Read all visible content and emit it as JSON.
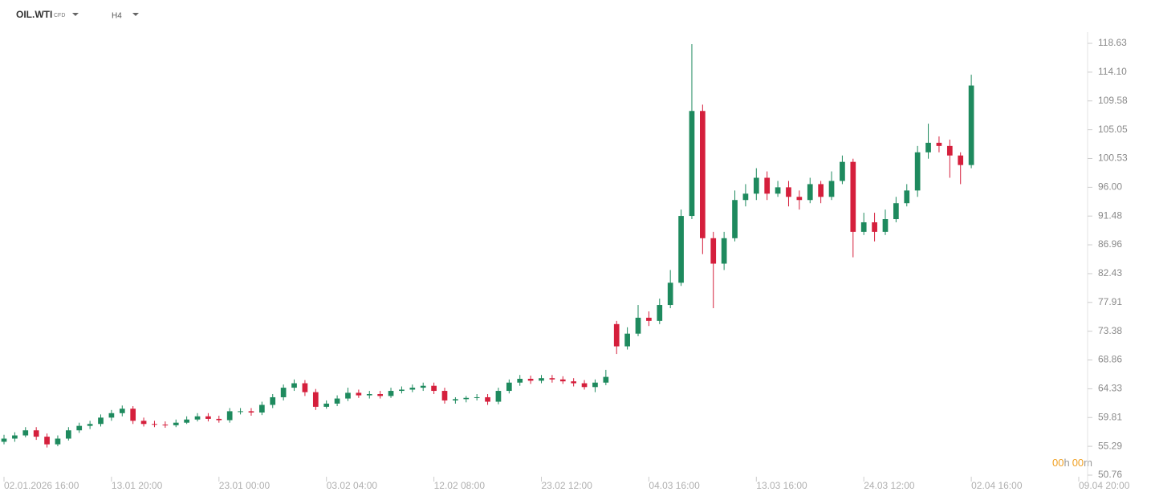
{
  "header": {
    "symbol": "OIL.WTI",
    "badge": "CFD",
    "timeframe": "H4"
  },
  "countdown": {
    "hours": "00",
    "hours_unit": "h",
    "minutes": "00",
    "minutes_unit": "m"
  },
  "chart_data": {
    "type": "candlestick",
    "up_color": "#1e8a5e",
    "down_color": "#d51f3c",
    "xlim": [
      0,
      100
    ],
    "xticks": [
      {
        "value": 0,
        "label": "02.01.2026 16:00"
      },
      {
        "value": 10,
        "label": "13.01 20:00"
      },
      {
        "value": 20,
        "label": "23.01 00:00"
      },
      {
        "value": 30,
        "label": "03.02 04:00"
      },
      {
        "value": 40,
        "label": "12.02 08:00"
      },
      {
        "value": 50,
        "label": "23.02 12:00"
      },
      {
        "value": 60,
        "label": "04.03 16:00"
      },
      {
        "value": 70,
        "label": "13.03 16:00"
      },
      {
        "value": 80,
        "label": "24.03 12:00"
      },
      {
        "value": 90,
        "label": "02.04 16:00"
      },
      {
        "value": 100,
        "label": "09.04 20:00"
      }
    ],
    "ylim": [
      50.76,
      118.63
    ],
    "yticks": [
      118.63,
      {
        "value": 114.1,
        "label": "114.10"
      },
      109.58,
      105.05,
      100.53,
      {
        "value": 96,
        "label": "96.00"
      },
      91.48,
      86.96,
      82.43,
      77.91,
      73.38,
      68.86,
      64.33,
      59.81,
      55.29,
      50.76
    ],
    "open": [
      56.0,
      56.5,
      57,
      57.8,
      56.8,
      55.6,
      56.5,
      57.8,
      58.5,
      58.8,
      59.8,
      60.5,
      61.2,
      59.3,
      58.8,
      58.7,
      58.6,
      59.0,
      59.5,
      60.0,
      59.6,
      59.4,
      60.8,
      60.8,
      60.6,
      61.8,
      63.0,
      64.5,
      65.2,
      63.8,
      61.5,
      62.0,
      62.8,
      63.7,
      63.3,
      63.5,
      63.2,
      64.0,
      64.2,
      64.5,
      64.8,
      64.0,
      62.5,
      62.7,
      62.9,
      63.0,
      62.3,
      64.0,
      65.3,
      65.9,
      65.6,
      66.0,
      65.8,
      65.5,
      65.2,
      64.6,
      65.3,
      74.5,
      71.0,
      73.0,
      75.5,
      75.0,
      77.5,
      81.0,
      91.5,
      108,
      88,
      84,
      88,
      94,
      95,
      97.5,
      95,
      96,
      94.5,
      94,
      96.5,
      94.5,
      97,
      100,
      89,
      90.5,
      89,
      91,
      93.5,
      95.5,
      101.5,
      103,
      102.5,
      101,
      99.5
    ],
    "high": [
      57.1,
      57.5,
      58.3,
      58.3,
      57.3,
      57,
      58.3,
      59,
      59.3,
      60.3,
      61,
      61.7,
      61.6,
      59.8,
      59.3,
      59.2,
      59.5,
      60,
      60.5,
      60.5,
      60.1,
      61.3,
      61.3,
      61.3,
      62.3,
      63.5,
      65,
      65.8,
      65.7,
      64.3,
      62.5,
      63.3,
      64.5,
      64.2,
      64,
      64,
      64.5,
      64.7,
      65,
      65.3,
      65.3,
      64.5,
      63,
      63.2,
      63.5,
      63.5,
      64.5,
      65.8,
      66.5,
      66.4,
      66.5,
      66.5,
      66.3,
      66,
      65.7,
      65.8,
      67.3,
      75,
      74,
      77.5,
      76.5,
      78.5,
      83,
      92.5,
      118.5,
      109,
      89,
      89,
      95.5,
      96.5,
      99,
      98.5,
      97,
      97,
      95.5,
      97.5,
      97,
      98.5,
      101,
      100.5,
      92,
      92,
      92.5,
      94.5,
      96.5,
      102.5,
      106,
      104,
      103.5,
      101.5,
      113.7
    ],
    "low": [
      55.6,
      56,
      56.7,
      56.3,
      55.1,
      55.3,
      56.2,
      57.4,
      58,
      58.4,
      59.3,
      60,
      58.8,
      58.4,
      58.3,
      58.2,
      58.3,
      58.8,
      59.2,
      59.2,
      59,
      59,
      60.3,
      60.1,
      60.2,
      61.3,
      62.5,
      64,
      63.2,
      61,
      61.2,
      61.6,
      62.4,
      62.9,
      62.8,
      62.8,
      62.9,
      63.6,
      63.8,
      64,
      63.5,
      62,
      62,
      62.2,
      62.5,
      61.8,
      61.9,
      63.6,
      64.8,
      65.1,
      65.2,
      65.3,
      65.1,
      64.7,
      64.2,
      63.8,
      64.9,
      69.8,
      70.5,
      72.6,
      74.2,
      74.5,
      77,
      80.5,
      91,
      85.5,
      77,
      83,
      87.5,
      93,
      94,
      94,
      94.5,
      93,
      92.5,
      93.5,
      93.5,
      94,
      96.5,
      85,
      88.5,
      87.5,
      88.5,
      90.5,
      93,
      94.5,
      100.5,
      101.5,
      97.5,
      96.5,
      99
    ],
    "close": [
      56.5,
      57,
      57.8,
      56.8,
      55.6,
      56.5,
      57.8,
      58.5,
      58.8,
      59.8,
      60.5,
      61.2,
      59.3,
      58.8,
      58.7,
      58.6,
      59.0,
      59.5,
      60.0,
      59.6,
      59.4,
      60.8,
      60.8,
      60.6,
      61.8,
      63.0,
      64.5,
      65.2,
      63.8,
      61.5,
      62.0,
      62.8,
      63.7,
      63.3,
      63.5,
      63.2,
      64.0,
      64.2,
      64.5,
      64.8,
      64.0,
      62.5,
      62.7,
      62.9,
      63.0,
      62.3,
      64.0,
      65.3,
      65.9,
      65.6,
      66.0,
      65.8,
      65.5,
      65.2,
      64.6,
      65.3,
      66.2,
      71.0,
      73.0,
      75.5,
      75.0,
      77.5,
      81.0,
      91.5,
      108,
      88,
      84,
      88,
      94,
      95,
      97.5,
      95,
      96,
      94.5,
      94,
      96.5,
      94.5,
      97,
      100,
      89,
      90.5,
      89,
      91,
      93.5,
      95.5,
      101.5,
      103,
      102.5,
      101,
      99.5,
      112
    ]
  }
}
